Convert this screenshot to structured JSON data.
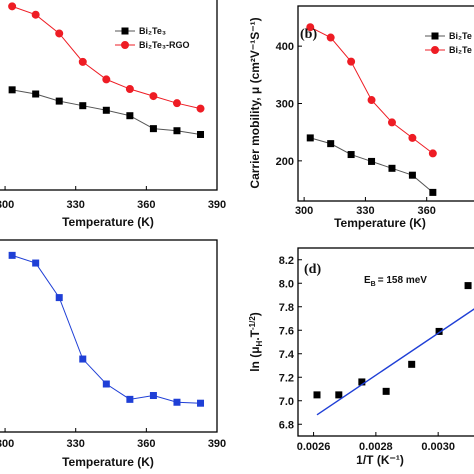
{
  "chart_data": [
    {
      "panel": "a",
      "type": "line",
      "panel_label": "",
      "xlabel": "Temperature (K)",
      "ylabel": "",
      "xlim": [
        297,
        390
      ],
      "ylim": [
        0,
        460
      ],
      "xticks": [
        "300",
        "330",
        "360",
        "390"
      ],
      "yticks": [],
      "grid": false,
      "legend_position": "top-right",
      "series": [
        {
          "name": "Bi₂Te₃",
          "marker": "square",
          "color": "#555555",
          "x": [
            303,
            313,
            323,
            333,
            343,
            353,
            363,
            373,
            383
          ],
          "y": [
            240,
            230,
            213,
            202,
            191,
            178,
            147,
            142,
            133
          ]
        },
        {
          "name": "Bi₂Te₃-RGO",
          "marker": "circle",
          "color": "#ee1c24",
          "x": [
            303,
            313,
            323,
            333,
            343,
            353,
            363,
            373,
            383
          ],
          "y": [
            440,
            420,
            375,
            307,
            265,
            242,
            225,
            208,
            195
          ]
        }
      ]
    },
    {
      "panel": "b",
      "type": "line",
      "panel_label": "(b)",
      "xlabel": "Temperature (K)",
      "ylabel": "Carrier mobility, μ (cm²V⁻¹S⁻¹)",
      "xlim": [
        297,
        390
      ],
      "ylim": [
        130,
        470
      ],
      "xticks": [
        "300",
        "330",
        "360"
      ],
      "yticks": [
        "200",
        "300",
        "400"
      ],
      "grid": false,
      "legend_position": "top-right",
      "series": [
        {
          "name": "Bi₂Te",
          "marker": "square",
          "color": "#555555",
          "x": [
            303,
            313,
            323,
            333,
            343,
            353,
            363
          ],
          "y": [
            240,
            230,
            211,
            199,
            187,
            175,
            145
          ]
        },
        {
          "name": "Bi₂Te",
          "marker": "circle",
          "color": "#ee1c24",
          "x": [
            303,
            313,
            323,
            333,
            343,
            353,
            363
          ],
          "y": [
            433,
            415,
            373,
            306,
            267,
            240,
            213
          ]
        }
      ]
    },
    {
      "panel": "c",
      "type": "line",
      "panel_label": "",
      "xlabel": "Temperature (K)",
      "ylabel": "",
      "xlim": [
        297,
        390
      ],
      "ylim": [
        0,
        1
      ],
      "xticks": [
        "300",
        "330",
        "360",
        "390"
      ],
      "yticks": [],
      "grid": false,
      "series": [
        {
          "name": "",
          "marker": "square",
          "color": "#1f3fd6",
          "x": [
            303,
            313,
            323,
            333,
            343,
            353,
            363,
            373,
            383
          ],
          "y": [
            0.92,
            0.88,
            0.7,
            0.38,
            0.25,
            0.17,
            0.19,
            0.155,
            0.15
          ]
        }
      ]
    },
    {
      "panel": "d",
      "type": "scatter",
      "panel_label": "(d)",
      "annotation": "E",
      "annotation_sub": "B",
      "annotation_rest": "= 158 meV",
      "xlabel": "1/T (K⁻¹)",
      "ylabel": "ln (μ",
      "ylabel_sub": "H",
      "ylabel_rest": ".T",
      "ylabel_sup": "-1/2",
      "ylabel_end": ")",
      "xlim": [
        0.00255,
        0.00316
      ],
      "ylim": [
        6.7,
        8.3
      ],
      "xticks": [
        "0.0026",
        "0.0028",
        "0.0030"
      ],
      "yticks": [
        "6.8",
        "7.0",
        "7.2",
        "7.4",
        "7.6",
        "7.8",
        "8.0",
        "8.2"
      ],
      "grid": false,
      "series": [
        {
          "name": "",
          "marker": "square",
          "color": "#000000",
          "x": [
            0.002611,
            0.002681,
            0.002755,
            0.002833,
            0.002915,
            0.003003,
            0.003096
          ],
          "y": [
            7.05,
            7.05,
            7.16,
            7.08,
            7.31,
            7.59,
            7.98
          ]
        },
        {
          "name": "",
          "marker": "none",
          "color": "#1f3fd6",
          "fit": true,
          "x": [
            0.002611,
            0.00316
          ],
          "y": [
            6.88,
            7.86
          ]
        }
      ]
    }
  ]
}
